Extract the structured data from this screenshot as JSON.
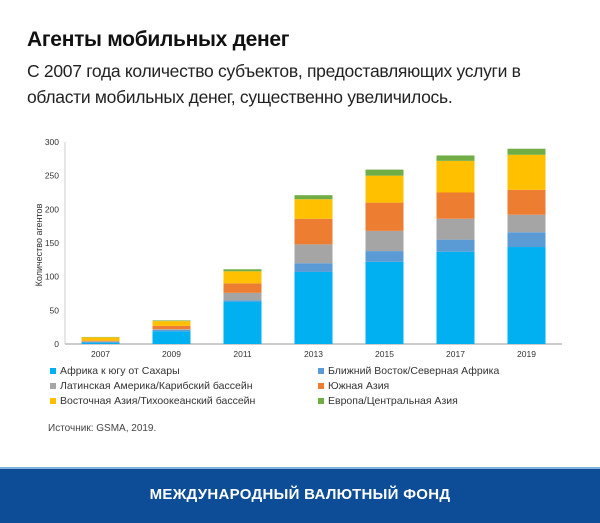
{
  "header": {
    "title": "Агенты мобильных денег",
    "subtitle": "С 2007 года количество субъектов, предоставляющих услуги в области мобильных денег, существенно увеличилось."
  },
  "chart_data": {
    "type": "bar",
    "stacked": true,
    "ylabel": "Количество агентов",
    "xlabel": "",
    "ylim": [
      0,
      300
    ],
    "yticks": [
      "0",
      "50",
      "100",
      "150",
      "200",
      "250",
      "300"
    ],
    "categories": [
      "2007",
      "2009",
      "2011",
      "2013",
      "2015",
      "2017",
      "2019"
    ],
    "grid": false,
    "legend_position": "bottom",
    "series": [
      {
        "name": "Африка к югу от Сахары",
        "color": "#00b0f0",
        "values": [
          2,
          19,
          63,
          107,
          122,
          137,
          144
        ]
      },
      {
        "name": "Ближний Восток/Северная Африка",
        "color": "#5b9bd5",
        "values": [
          1,
          2,
          2,
          13,
          16,
          18,
          22
        ]
      },
      {
        "name": "Латинская Америка/Карибский бассейн",
        "color": "#a5a5a5",
        "values": [
          1,
          1,
          11,
          28,
          30,
          31,
          26
        ]
      },
      {
        "name": "Южная Азия",
        "color": "#ed7d31",
        "values": [
          1,
          5,
          14,
          38,
          42,
          39,
          37
        ]
      },
      {
        "name": "Восточная Азия/Тихоокеанский бассейн",
        "color": "#ffc000",
        "values": [
          5,
          7,
          18,
          29,
          40,
          47,
          52
        ]
      },
      {
        "name": "Европа/Центральная Азия",
        "color": "#70ad47",
        "values": [
          0.5,
          1,
          3,
          6,
          9,
          8,
          9
        ]
      }
    ]
  },
  "source": "Источник: GSMA, 2019.",
  "footer": {
    "text": "МЕЖДУНАРОДНЫЙ ВАЛЮТНЫЙ ФОНД",
    "color": "#0d4c96"
  }
}
